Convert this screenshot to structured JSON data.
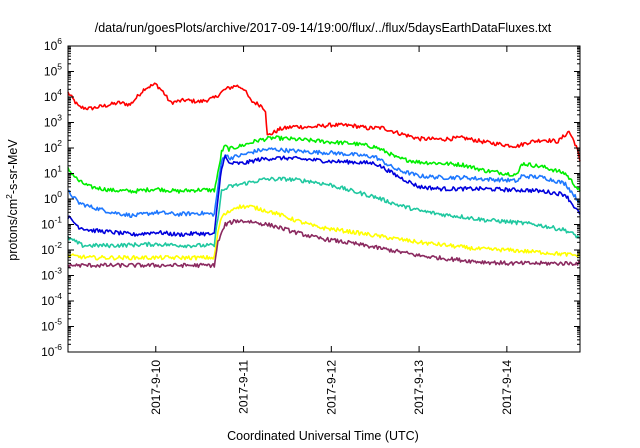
{
  "chart_data": {
    "type": "line",
    "title": "/data/run/goesPlots/archive/2017-09-14/19:00/flux/../flux/5daysEarthDataFluxes.txt",
    "xlabel": "Coordinated Universal Time (UTC)",
    "ylabel": "protons/cm²-s-sr-MeV",
    "ylabel_parts": {
      "pre": "protons/cm",
      "sup": "2",
      "post": "-s-sr-MeV"
    },
    "y_scale": "log",
    "ylim": [
      1e-06,
      1000000.0
    ],
    "y_ticks": [
      {
        "base": "10",
        "exp": "-6",
        "value": 1e-06
      },
      {
        "base": "10",
        "exp": "-5",
        "value": 1e-05
      },
      {
        "base": "10",
        "exp": "-4",
        "value": 0.0001
      },
      {
        "base": "10",
        "exp": "-3",
        "value": 0.001
      },
      {
        "base": "10",
        "exp": "-2",
        "value": 0.01
      },
      {
        "base": "10",
        "exp": "-1",
        "value": 0.1
      },
      {
        "base": "10",
        "exp": "0",
        "value": 1
      },
      {
        "base": "10",
        "exp": "1",
        "value": 10
      },
      {
        "base": "10",
        "exp": "2",
        "value": 100
      },
      {
        "base": "10",
        "exp": "3",
        "value": 1000
      },
      {
        "base": "10",
        "exp": "4",
        "value": 10000
      },
      {
        "base": "10",
        "exp": "5",
        "value": 100000
      },
      {
        "base": "10",
        "exp": "6",
        "value": 1000000
      }
    ],
    "x_type": "date",
    "xlim": [
      "2017-09-09 00:00",
      "2017-09-14 20:00"
    ],
    "x_ticks": [
      "2017-9-10",
      "2017-9-11",
      "2017-9-12",
      "2017-9-13",
      "2017-9-14"
    ],
    "x_tick_values": [
      "2017-09-10 00:00",
      "2017-09-11 00:00",
      "2017-09-12 00:00",
      "2017-09-13 00:00",
      "2017-09-14 00:00"
    ],
    "grid": false,
    "legend": "none",
    "series": [
      {
        "color": "#ff0000",
        "points": [
          [
            "2017-09-09 00:00",
            15000
          ],
          [
            "2017-09-09 03:00",
            4000
          ],
          [
            "2017-09-09 06:00",
            3500
          ],
          [
            "2017-09-09 10:00",
            4500
          ],
          [
            "2017-09-09 14:00",
            6000
          ],
          [
            "2017-09-09 17:00",
            5000
          ],
          [
            "2017-09-09 21:00",
            22000
          ],
          [
            "2017-09-10 00:00",
            32000
          ],
          [
            "2017-09-10 02:00",
            16000
          ],
          [
            "2017-09-10 04:00",
            6000
          ],
          [
            "2017-09-10 08:00",
            7500
          ],
          [
            "2017-09-10 12:00",
            6500
          ],
          [
            "2017-09-10 16:00",
            9000
          ],
          [
            "2017-09-10 19:00",
            20000
          ],
          [
            "2017-09-10 22:00",
            28000
          ],
          [
            "2017-09-11 00:00",
            22000
          ],
          [
            "2017-09-11 02:00",
            7000
          ],
          [
            "2017-09-11 05:00",
            4500
          ],
          [
            "2017-09-11 06:00",
            3000
          ],
          [
            "2017-09-11 06:30",
            300
          ],
          [
            "2017-09-11 10:00",
            550
          ],
          [
            "2017-09-11 14:00",
            700
          ],
          [
            "2017-09-11 18:00",
            650
          ],
          [
            "2017-09-12 00:00",
            800
          ],
          [
            "2017-09-12 06:00",
            750
          ],
          [
            "2017-09-12 10:00",
            600
          ],
          [
            "2017-09-12 14:00",
            620
          ],
          [
            "2017-09-12 18:00",
            400
          ],
          [
            "2017-09-13 00:00",
            230
          ],
          [
            "2017-09-13 06:00",
            220
          ],
          [
            "2017-09-13 12:00",
            250
          ],
          [
            "2017-09-13 18:00",
            170
          ],
          [
            "2017-09-14 00:00",
            130
          ],
          [
            "2017-09-14 03:00",
            120
          ],
          [
            "2017-09-14 06:00",
            170
          ],
          [
            "2017-09-14 10:00",
            210
          ],
          [
            "2017-09-14 14:00",
            180
          ],
          [
            "2017-09-14 17:00",
            450
          ],
          [
            "2017-09-14 19:00",
            120
          ],
          [
            "2017-09-14 20:00",
            30
          ]
        ]
      },
      {
        "color": "#00ee00",
        "points": [
          [
            "2017-09-09 00:00",
            15
          ],
          [
            "2017-09-09 03:00",
            5
          ],
          [
            "2017-09-09 06:00",
            3
          ],
          [
            "2017-09-09 12:00",
            2.2
          ],
          [
            "2017-09-09 18:00",
            2
          ],
          [
            "2017-09-10 00:00",
            2.5
          ],
          [
            "2017-09-10 06:00",
            2
          ],
          [
            "2017-09-10 12:00",
            2.3
          ],
          [
            "2017-09-10 16:00",
            2.2
          ],
          [
            "2017-09-10 17:00",
            10
          ],
          [
            "2017-09-10 18:00",
            70
          ],
          [
            "2017-09-10 19:00",
            120
          ],
          [
            "2017-09-10 20:00",
            90
          ],
          [
            "2017-09-11 00:00",
            130
          ],
          [
            "2017-09-11 04:00",
            200
          ],
          [
            "2017-09-11 08:00",
            250
          ],
          [
            "2017-09-11 12:00",
            230
          ],
          [
            "2017-09-11 18:00",
            200
          ],
          [
            "2017-09-12 00:00",
            170
          ],
          [
            "2017-09-12 06:00",
            150
          ],
          [
            "2017-09-12 12:00",
            110
          ],
          [
            "2017-09-12 16:00",
            60
          ],
          [
            "2017-09-12 18:00",
            40
          ],
          [
            "2017-09-13 00:00",
            28
          ],
          [
            "2017-09-13 06:00",
            25
          ],
          [
            "2017-09-13 12:00",
            22
          ],
          [
            "2017-09-13 18:00",
            13
          ],
          [
            "2017-09-14 00:00",
            10
          ],
          [
            "2017-09-14 03:00",
            9
          ],
          [
            "2017-09-14 04:00",
            25
          ],
          [
            "2017-09-14 10:00",
            18
          ],
          [
            "2017-09-14 16:00",
            10
          ],
          [
            "2017-09-14 20:00",
            2
          ]
        ]
      },
      {
        "color": "#1e78ff",
        "points": [
          [
            "2017-09-09 00:00",
            2
          ],
          [
            "2017-09-09 03:00",
            0.7
          ],
          [
            "2017-09-09 06:00",
            0.5
          ],
          [
            "2017-09-09 12:00",
            0.3
          ],
          [
            "2017-09-09 18:00",
            0.22
          ],
          [
            "2017-09-10 00:00",
            0.3
          ],
          [
            "2017-09-10 06:00",
            0.25
          ],
          [
            "2017-09-10 12:00",
            0.28
          ],
          [
            "2017-09-10 16:00",
            0.25
          ],
          [
            "2017-09-10 17:00",
            3
          ],
          [
            "2017-09-10 18:00",
            30
          ],
          [
            "2017-09-10 19:00",
            60
          ],
          [
            "2017-09-10 20:00",
            40
          ],
          [
            "2017-09-11 00:00",
            55
          ],
          [
            "2017-09-11 04:00",
            80
          ],
          [
            "2017-09-11 08:00",
            90
          ],
          [
            "2017-09-11 12:00",
            80
          ],
          [
            "2017-09-11 18:00",
            70
          ],
          [
            "2017-09-12 00:00",
            65
          ],
          [
            "2017-09-12 06:00",
            55
          ],
          [
            "2017-09-12 12:00",
            45
          ],
          [
            "2017-09-12 16:00",
            20
          ],
          [
            "2017-09-12 18:00",
            14
          ],
          [
            "2017-09-13 00:00",
            8
          ],
          [
            "2017-09-13 06:00",
            7
          ],
          [
            "2017-09-13 12:00",
            7
          ],
          [
            "2017-09-13 18:00",
            6
          ],
          [
            "2017-09-14 00:00",
            5.5
          ],
          [
            "2017-09-14 03:00",
            5
          ],
          [
            "2017-09-14 04:00",
            8
          ],
          [
            "2017-09-14 10:00",
            7
          ],
          [
            "2017-09-14 16:00",
            4
          ],
          [
            "2017-09-14 20:00",
            0.7
          ]
        ]
      },
      {
        "color": "#0000dd",
        "points": [
          [
            "2017-09-09 00:00",
            0.2
          ],
          [
            "2017-09-09 03:00",
            0.08
          ],
          [
            "2017-09-09 06:00",
            0.06
          ],
          [
            "2017-09-09 12:00",
            0.05
          ],
          [
            "2017-09-09 18:00",
            0.04
          ],
          [
            "2017-09-10 00:00",
            0.05
          ],
          [
            "2017-09-10 06:00",
            0.04
          ],
          [
            "2017-09-10 12:00",
            0.045
          ],
          [
            "2017-09-10 16:00",
            0.04
          ],
          [
            "2017-09-10 17:00",
            1
          ],
          [
            "2017-09-10 18:00",
            18
          ],
          [
            "2017-09-10 19:00",
            45
          ],
          [
            "2017-09-10 20:00",
            25
          ],
          [
            "2017-09-11 00:00",
            25
          ],
          [
            "2017-09-11 04:00",
            35
          ],
          [
            "2017-09-11 08:00",
            40
          ],
          [
            "2017-09-11 12:00",
            40
          ],
          [
            "2017-09-11 18:00",
            35
          ],
          [
            "2017-09-12 00:00",
            30
          ],
          [
            "2017-09-12 06:00",
            28
          ],
          [
            "2017-09-12 12:00",
            25
          ],
          [
            "2017-09-12 16:00",
            12
          ],
          [
            "2017-09-12 18:00",
            8
          ],
          [
            "2017-09-13 00:00",
            3
          ],
          [
            "2017-09-13 06:00",
            2.5
          ],
          [
            "2017-09-13 12:00",
            2.5
          ],
          [
            "2017-09-13 18:00",
            2.5
          ],
          [
            "2017-09-14 00:00",
            2.3
          ],
          [
            "2017-09-14 06:00",
            2.2
          ],
          [
            "2017-09-14 10:00",
            2
          ],
          [
            "2017-09-14 16:00",
            1.5
          ],
          [
            "2017-09-14 20:00",
            0.25
          ]
        ]
      },
      {
        "color": "#20c8a0",
        "points": [
          [
            "2017-09-09 00:00",
            0.03
          ],
          [
            "2017-09-09 04:00",
            0.015
          ],
          [
            "2017-09-09 12:00",
            0.015
          ],
          [
            "2017-09-10 00:00",
            0.017
          ],
          [
            "2017-09-10 08:00",
            0.015
          ],
          [
            "2017-09-10 16:00",
            0.015
          ],
          [
            "2017-09-10 17:00",
            0.2
          ],
          [
            "2017-09-10 18:00",
            2
          ],
          [
            "2017-09-10 20:00",
            3
          ],
          [
            "2017-09-11 00:00",
            4
          ],
          [
            "2017-09-11 06:00",
            6
          ],
          [
            "2017-09-11 12:00",
            6
          ],
          [
            "2017-09-11 18:00",
            5
          ],
          [
            "2017-09-12 00:00",
            3.5
          ],
          [
            "2017-09-12 06:00",
            2
          ],
          [
            "2017-09-12 12:00",
            1.2
          ],
          [
            "2017-09-12 18:00",
            0.6
          ],
          [
            "2017-09-13 00:00",
            0.35
          ],
          [
            "2017-09-13 06:00",
            0.25
          ],
          [
            "2017-09-13 12:00",
            0.2
          ],
          [
            "2017-09-13 18:00",
            0.15
          ],
          [
            "2017-09-14 00:00",
            0.13
          ],
          [
            "2017-09-14 08:00",
            0.1
          ],
          [
            "2017-09-14 16:00",
            0.06
          ],
          [
            "2017-09-14 20:00",
            0.03
          ]
        ]
      },
      {
        "color": "#ffff00",
        "points": [
          [
            "2017-09-09 00:00",
            0.006
          ],
          [
            "2017-09-09 06:00",
            0.005
          ],
          [
            "2017-09-09 18:00",
            0.005
          ],
          [
            "2017-09-10 08:00",
            0.005
          ],
          [
            "2017-09-10 16:00",
            0.005
          ],
          [
            "2017-09-10 17:00",
            0.05
          ],
          [
            "2017-09-10 18:00",
            0.2
          ],
          [
            "2017-09-10 22:00",
            0.5
          ],
          [
            "2017-09-11 02:00",
            0.5
          ],
          [
            "2017-09-11 08:00",
            0.3
          ],
          [
            "2017-09-11 14:00",
            0.15
          ],
          [
            "2017-09-11 20:00",
            0.08
          ],
          [
            "2017-09-12 06:00",
            0.05
          ],
          [
            "2017-09-12 16:00",
            0.03
          ],
          [
            "2017-09-13 00:00",
            0.02
          ],
          [
            "2017-09-13 08:00",
            0.015
          ],
          [
            "2017-09-13 16:00",
            0.011
          ],
          [
            "2017-09-14 00:00",
            0.01
          ],
          [
            "2017-09-14 10:00",
            0.008
          ],
          [
            "2017-09-14 20:00",
            0.006
          ]
        ]
      },
      {
        "color": "#8b2a60",
        "points": [
          [
            "2017-09-09 00:00",
            0.0025
          ],
          [
            "2017-09-09 12:00",
            0.0025
          ],
          [
            "2017-09-10 00:00",
            0.0025
          ],
          [
            "2017-09-10 08:00",
            0.0025
          ],
          [
            "2017-09-10 16:00",
            0.0025
          ],
          [
            "2017-09-10 17:00",
            0.02
          ],
          [
            "2017-09-10 19:00",
            0.1
          ],
          [
            "2017-09-10 22:00",
            0.14
          ],
          [
            "2017-09-11 02:00",
            0.13
          ],
          [
            "2017-09-11 08:00",
            0.09
          ],
          [
            "2017-09-11 14:00",
            0.05
          ],
          [
            "2017-09-11 20:00",
            0.03
          ],
          [
            "2017-09-12 06:00",
            0.018
          ],
          [
            "2017-09-12 16:00",
            0.01
          ],
          [
            "2017-09-13 00:00",
            0.006
          ],
          [
            "2017-09-13 08:00",
            0.0045
          ],
          [
            "2017-09-13 16:00",
            0.0035
          ],
          [
            "2017-09-14 00:00",
            0.003
          ],
          [
            "2017-09-14 10:00",
            0.003
          ],
          [
            "2017-09-14 20:00",
            0.003
          ]
        ]
      }
    ]
  }
}
